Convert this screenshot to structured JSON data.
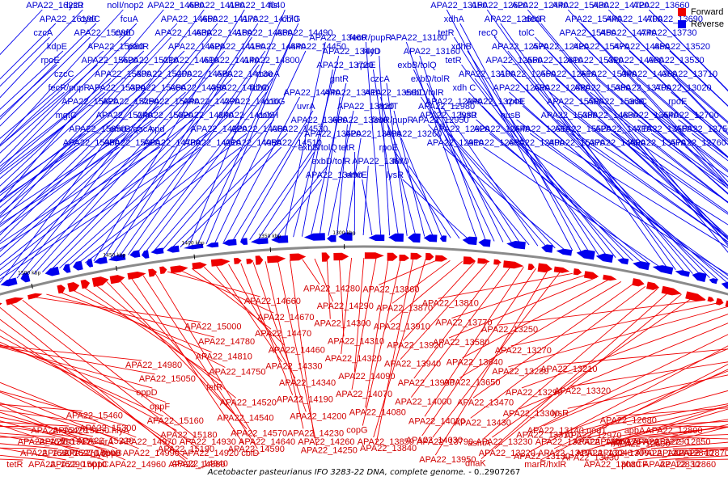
{
  "legend": {
    "forward_label": "Forward",
    "reverse_label": "Reverse",
    "forward_color": "#ee0000",
    "reverse_color": "#0000ee"
  },
  "caption": {
    "organism": "Acetobacter pasteurianus IFO 3283-22 DNA, complete genome.",
    "range": "- 0..2907267"
  },
  "ticks": [
    "1750 kbp",
    "1700 kbp",
    "1650 kbp",
    "1600 kbp",
    "1550 kbp",
    "1500 kbp",
    "1450 kbp",
    "1400 kbp",
    "1350 kbp",
    "1300 kbp"
  ],
  "forward_labels": [
    "tetR",
    "APA22_15600",
    "APA22_15510",
    "APA22_15420",
    "APA22_15290",
    "APA22_15270",
    "APA22_15170",
    "APA22_15150",
    "APA22_15010",
    "APA22_15090",
    "ftsJ",
    "APA22_15460",
    "APA22_15300",
    "APA22_15220",
    "hlyD",
    "oppC",
    "oppB",
    "sirA",
    "hlyA",
    "APA22_14960",
    "APA22_14990",
    "APA22_14970",
    "APA22_14980",
    "APA22_15050",
    "oppD",
    "oppF",
    "APA22_15160",
    "APA22_15180",
    "APA22_15190",
    "APA22_14940",
    "APA22_14880",
    "APA22_14920",
    "APA22_14930",
    "APA22_15000",
    "APA22_14780",
    "APA22_14810",
    "APA22_14750",
    "tetR",
    "APA22_14520",
    "APA22_14540",
    "APA22_14570",
    "APA22_14590",
    "cbiD",
    "APA22_14640",
    "APA22_14660",
    "APA22_14670",
    "APA22_14470",
    "APA22_14460",
    "APA22_14330",
    "APA22_14340",
    "APA22_14190",
    "APA22_14200",
    "APA22_14230",
    "APA22_14250",
    "APA22_14260",
    "APA22_14280",
    "APA22_14290",
    "APA22_14300",
    "APA22_14310",
    "APA22_14320",
    "APA22_14090",
    "APA22_14070",
    "APA22_14080",
    "copG",
    "APA22_13840",
    "APA22_13850",
    "APA22_13860",
    "APA22_13870",
    "APA22_13910",
    "APA22_13920",
    "APA22_13940",
    "APA22_13990",
    "APA22_14000",
    "APA22_14020",
    "APA22_14030",
    "APA22_13950",
    "APA22_13790",
    "APA22_13810",
    "APA22_13770",
    "APA22_13580",
    "APA22_13640",
    "APA22_13650",
    "APA22_13470",
    "APA22_13430",
    "asmA",
    "dnaK",
    "APA22_13220",
    "APA22_13230",
    "APA22_13250",
    "APA22_13270",
    "APA22_13280",
    "APA22_13290",
    "APA22_13300",
    "APA22_13310",
    "APA22_13130",
    "APA22_13140",
    "marR/hxlR",
    "APA22_13190",
    "APA22_13200",
    "APA22_13210",
    "APA22_13320",
    "lysR",
    "APA22_12970",
    "APA22_13030",
    "APA22_13040",
    "APA22_13050",
    "nodT",
    "APA22_13080",
    "APA22_13090",
    "APA22_12670",
    "APA22_12680",
    "APA22_12690",
    "phnA",
    "apbA",
    "phzCF",
    "APA22_12770",
    "APA22_12790",
    "APA22_12800",
    "APA22_12830",
    "APA22_12840",
    "APA22_12850",
    "APA22_12860",
    "APA22_12870"
  ],
  "reverse_labels": [
    "APA22_16220",
    "APA22_16190",
    "czcA",
    "kdpE",
    "rpoE",
    "czcC",
    "fecR/pupR",
    "APA22_15820",
    "mgtC",
    "APA22_15650",
    "APA22_15960",
    "lysR",
    "cydC",
    "APA22_15690",
    "APA22_15680",
    "APA22_15620",
    "APA22_15390",
    "APA22_15320",
    "APA22_15250",
    "APA22_15240",
    "emrB/qacA",
    "APA22_15080",
    "nolI/nop2",
    "fcuA",
    "cydD",
    "padR",
    "APA22_15210",
    "APA22_15200",
    "APA22_15060",
    "APA22_15040",
    "APA22_15020",
    "npd",
    "APA22_14730",
    "APA22_14680",
    "APA22_14650",
    "APA22_14630",
    "APA22_14620",
    "APA22_14610",
    "APA22_14580",
    "APA22_14350",
    "APA22_14270",
    "APA22_14240",
    "APA22_14220",
    "APA22_14210",
    "APA22_14180",
    "APA22_14170",
    "APA22_14160",
    "APA22_14150",
    "APA22_14140",
    "APA22_14130",
    "APA22_14120",
    "APA22_14110",
    "APA22_14100",
    "APA22_14060",
    "APA22_14050",
    "APA22_14040",
    "APA22_14770",
    "APA22_14860",
    "APA22_14840",
    "APA22_14800",
    "moeA",
    "fdhD",
    "cobG",
    "cobH",
    "APA22_14530",
    "APA22_14510",
    "fis",
    "cbiG",
    "APA22_14490",
    "APA22_14450",
    "APA22_14440",
    "uvrA",
    "APA22_13680",
    "APA22_13620",
    "exbB/tolQ",
    "exbD/tolR",
    "APA22_13490",
    "APA22_13460",
    "APA22_13440",
    "APA22_13720",
    "gntR",
    "APA22_13410",
    "APA22_13820",
    "APA22_13390",
    "APA22_13800",
    "tetR",
    "APA22_13670",
    "emrE",
    "fecR/pupR",
    "hlyD",
    "rpoE",
    "czcA",
    "APA22_13590",
    "nodT",
    "fecR/pupR",
    "APA22_13260",
    "rpoE",
    "fur",
    "lysR",
    "APA22_13180",
    "APA22_13160",
    "exbB/tolQ",
    "exbD/tolR",
    "exbD/tolR",
    "APA22_12980",
    "APA22_12950",
    "APA22_12940",
    "APA22_12930",
    "APA22_12920",
    "APA22_12910",
    "APA22_13150",
    "xdhA",
    "tetR",
    "xdhB",
    "tetR",
    "APA22_13100",
    "xdh C",
    "APA22_13240",
    "lysR",
    "APA22_12640",
    "APA22_12630",
    "APA22_12620",
    "APA22_12600",
    "recQ",
    "APA22_12570",
    "APA22_12560",
    "APA22_12550",
    "APA22_12530",
    "rpoE",
    "nusB",
    "APA22_12510",
    "APA22_12490",
    "APA22_12440",
    "deoR",
    "tolC",
    "APA22_12420",
    "APA22_12810",
    "APA22_12610",
    "APA22_12820",
    "APA22_15500",
    "APA22_15380",
    "APA22_15520",
    "APA22_15370",
    "APA22_15430",
    "APA22_15440",
    "APA22_15450",
    "APA22_15470",
    "APA22_15310",
    "APA22_15340",
    "APA22_15350",
    "APA22_15360",
    "APA22_14830",
    "APA22_14710",
    "APA22_14690",
    "APA22_14720",
    "APA22_14700",
    "APA22_14740",
    "APA22_14850",
    "APA22_14900",
    "APA22_14360",
    "APA22_13700",
    "araC",
    "APA22_13540",
    "APA22_13560",
    "APA22_13570",
    "APA22_13660",
    "APA22_13690",
    "APA22_13730",
    "APA22_13520",
    "APA22_13530",
    "APA22_13710",
    "APA22_13020",
    "rpoE",
    "APA22_12700",
    "APA22_12750",
    "APA22_12760"
  ]
}
